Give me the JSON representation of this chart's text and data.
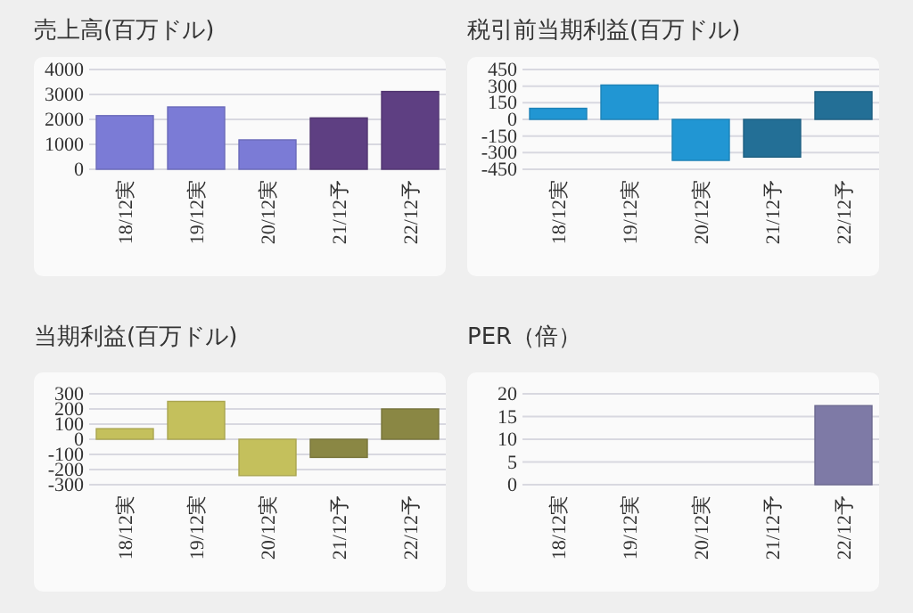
{
  "chart_data": [
    {
      "type": "bar",
      "title": "売上高(百万ドル)",
      "categories": [
        "18/12実",
        "19/12実",
        "20/12実",
        "21/12予",
        "22/12予"
      ],
      "values": [
        2150,
        2500,
        1180,
        2060,
        3120
      ],
      "colors": [
        "#7b7bd6",
        "#7b7bd6",
        "#7b7bd6",
        "#5e3f82",
        "#5e3f82"
      ],
      "ylim": [
        0,
        4000
      ],
      "yticks": [
        0,
        1000,
        2000,
        3000,
        4000
      ],
      "grid": "y"
    },
    {
      "type": "bar",
      "title": "税引前当期利益(百万ドル)",
      "categories": [
        "18/12実",
        "19/12実",
        "20/12実",
        "21/12予",
        "22/12予"
      ],
      "values": [
        100,
        310,
        -370,
        -340,
        250
      ],
      "colors": [
        "#2196d3",
        "#2196d3",
        "#2196d3",
        "#236f96",
        "#236f96"
      ],
      "ylim": [
        -450,
        450
      ],
      "yticks": [
        -450,
        -300,
        -150,
        0,
        150,
        300,
        450
      ],
      "grid": "y"
    },
    {
      "type": "bar",
      "title": "当期利益(百万ドル)",
      "categories": [
        "18/12実",
        "19/12実",
        "20/12実",
        "21/12予",
        "22/12予"
      ],
      "values": [
        70,
        250,
        -240,
        -120,
        200
      ],
      "colors": [
        "#c4c05c",
        "#c4c05c",
        "#c4c05c",
        "#8a8744",
        "#8a8744"
      ],
      "ylim": [
        -300,
        300
      ],
      "yticks": [
        -300,
        -200,
        -100,
        0,
        100,
        200,
        300
      ],
      "grid": "y"
    },
    {
      "type": "bar",
      "title": "PER（倍）",
      "categories": [
        "18/12実",
        "19/12実",
        "20/12実",
        "21/12予",
        "22/12予"
      ],
      "values": [
        null,
        null,
        null,
        null,
        17.4
      ],
      "color": "#7e7aa6",
      "ylim": [
        0,
        20
      ],
      "yticks": [
        0,
        5,
        10,
        15,
        20
      ],
      "grid": "y"
    }
  ]
}
